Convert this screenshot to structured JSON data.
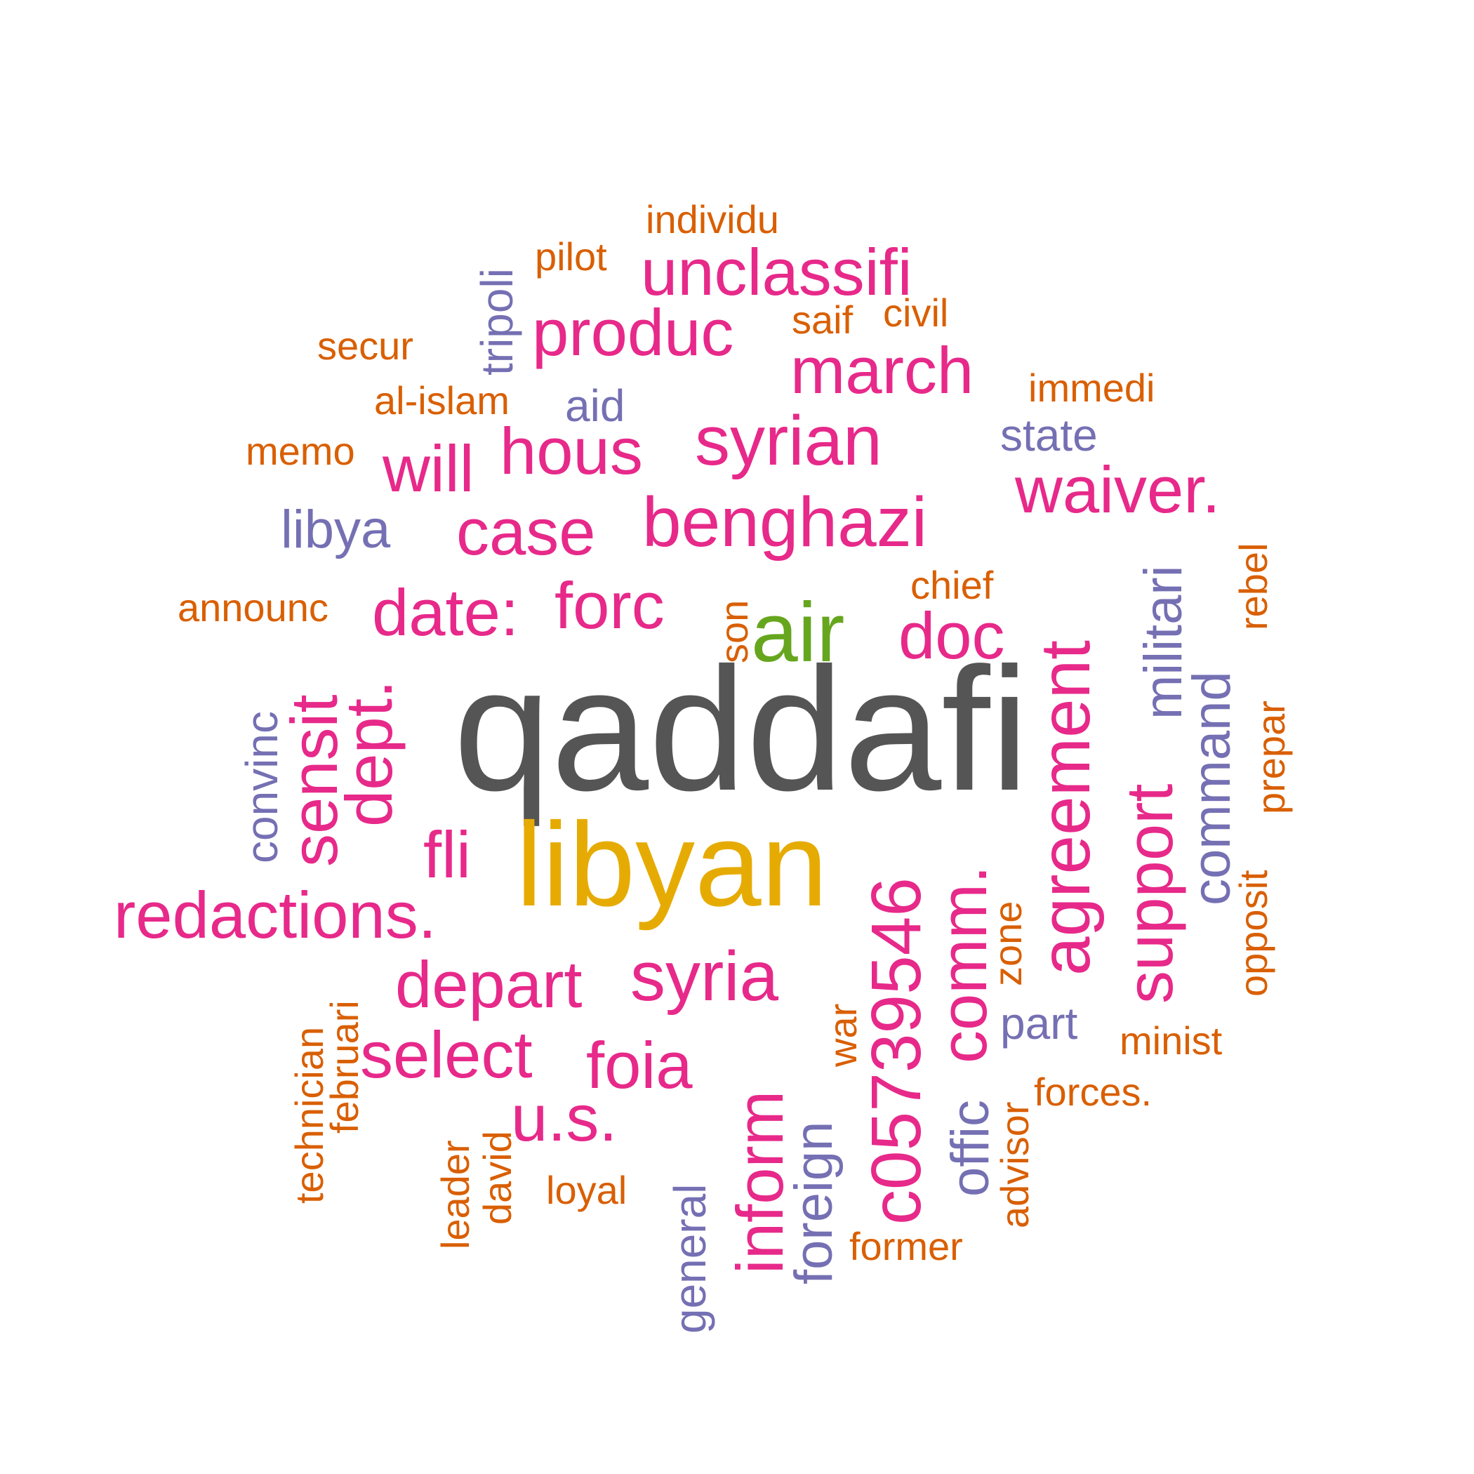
{
  "colors": {
    "gray": "#555555",
    "gold": "#E6AB02",
    "green": "#66A61E",
    "magenta": "#E7298A",
    "purple": "#7570B3",
    "orange": "#D95F02"
  },
  "chart_data": {
    "type": "wordcloud",
    "words": [
      {
        "text": "qaddafi",
        "tier": 1,
        "color": "gray"
      },
      {
        "text": "libyan",
        "tier": 2,
        "color": "gold"
      },
      {
        "text": "air",
        "tier": 3,
        "color": "green"
      },
      {
        "text": "benghazi",
        "tier": 4,
        "color": "magenta"
      },
      {
        "text": "agreement",
        "tier": 4,
        "color": "magenta"
      },
      {
        "text": "c05739546",
        "tier": 4,
        "color": "magenta"
      },
      {
        "text": "syrian",
        "tier": 4,
        "color": "magenta"
      },
      {
        "text": "syria",
        "tier": 4,
        "color": "magenta"
      },
      {
        "text": "unclassifi",
        "tier": 4,
        "color": "magenta"
      },
      {
        "text": "produc",
        "tier": 4,
        "color": "magenta"
      },
      {
        "text": "march",
        "tier": 4,
        "color": "magenta"
      },
      {
        "text": "hous",
        "tier": 4,
        "color": "magenta"
      },
      {
        "text": "will",
        "tier": 4,
        "color": "magenta"
      },
      {
        "text": "case",
        "tier": 4,
        "color": "magenta"
      },
      {
        "text": "waiver.",
        "tier": 4,
        "color": "magenta"
      },
      {
        "text": "date:",
        "tier": 4,
        "color": "magenta"
      },
      {
        "text": "forc",
        "tier": 4,
        "color": "magenta"
      },
      {
        "text": "doc",
        "tier": 4,
        "color": "magenta"
      },
      {
        "text": "sensit",
        "tier": 4,
        "color": "magenta"
      },
      {
        "text": "dept.",
        "tier": 4,
        "color": "magenta"
      },
      {
        "text": "support",
        "tier": 4,
        "color": "magenta"
      },
      {
        "text": "comm.",
        "tier": 4,
        "color": "magenta"
      },
      {
        "text": "fli",
        "tier": 4,
        "color": "magenta"
      },
      {
        "text": "redactions.",
        "tier": 4,
        "color": "magenta"
      },
      {
        "text": "depart",
        "tier": 4,
        "color": "magenta"
      },
      {
        "text": "select",
        "tier": 4,
        "color": "magenta"
      },
      {
        "text": "foia",
        "tier": 4,
        "color": "magenta"
      },
      {
        "text": "u.s.",
        "tier": 4,
        "color": "magenta"
      },
      {
        "text": "inform",
        "tier": 4,
        "color": "magenta"
      },
      {
        "text": "libya",
        "tier": 5,
        "color": "purple"
      },
      {
        "text": "militari",
        "tier": 5,
        "color": "purple"
      },
      {
        "text": "command",
        "tier": 5,
        "color": "purple"
      },
      {
        "text": "convinc",
        "tier": 5,
        "color": "purple"
      },
      {
        "text": "tripoli",
        "tier": 5,
        "color": "purple"
      },
      {
        "text": "aid",
        "tier": 5,
        "color": "purple"
      },
      {
        "text": "state",
        "tier": 5,
        "color": "purple"
      },
      {
        "text": "part",
        "tier": 5,
        "color": "purple"
      },
      {
        "text": "foreign",
        "tier": 5,
        "color": "purple"
      },
      {
        "text": "offic",
        "tier": 5,
        "color": "purple"
      },
      {
        "text": "general",
        "tier": 5,
        "color": "purple"
      },
      {
        "text": "individu",
        "tier": 6,
        "color": "orange"
      },
      {
        "text": "pilot",
        "tier": 6,
        "color": "orange"
      },
      {
        "text": "saif",
        "tier": 6,
        "color": "orange"
      },
      {
        "text": "civil",
        "tier": 6,
        "color": "orange"
      },
      {
        "text": "secur",
        "tier": 6,
        "color": "orange"
      },
      {
        "text": "immedi",
        "tier": 6,
        "color": "orange"
      },
      {
        "text": "al-islam",
        "tier": 6,
        "color": "orange"
      },
      {
        "text": "memo",
        "tier": 6,
        "color": "orange"
      },
      {
        "text": "chief",
        "tier": 6,
        "color": "orange"
      },
      {
        "text": "announc",
        "tier": 6,
        "color": "orange"
      },
      {
        "text": "son",
        "tier": 6,
        "color": "orange"
      },
      {
        "text": "rebel",
        "tier": 6,
        "color": "orange"
      },
      {
        "text": "prepar",
        "tier": 6,
        "color": "orange"
      },
      {
        "text": "opposit",
        "tier": 6,
        "color": "orange"
      },
      {
        "text": "zone",
        "tier": 6,
        "color": "orange"
      },
      {
        "text": "minist",
        "tier": 6,
        "color": "orange"
      },
      {
        "text": "war",
        "tier": 6,
        "color": "orange"
      },
      {
        "text": "forces.",
        "tier": 6,
        "color": "orange"
      },
      {
        "text": "technician",
        "tier": 6,
        "color": "orange"
      },
      {
        "text": "februari",
        "tier": 6,
        "color": "orange"
      },
      {
        "text": "leader",
        "tier": 6,
        "color": "orange"
      },
      {
        "text": "david",
        "tier": 6,
        "color": "orange"
      },
      {
        "text": "loyal",
        "tier": 6,
        "color": "orange"
      },
      {
        "text": "advisor",
        "tier": 6,
        "color": "orange"
      },
      {
        "text": "former",
        "tier": 6,
        "color": "orange"
      }
    ]
  }
}
